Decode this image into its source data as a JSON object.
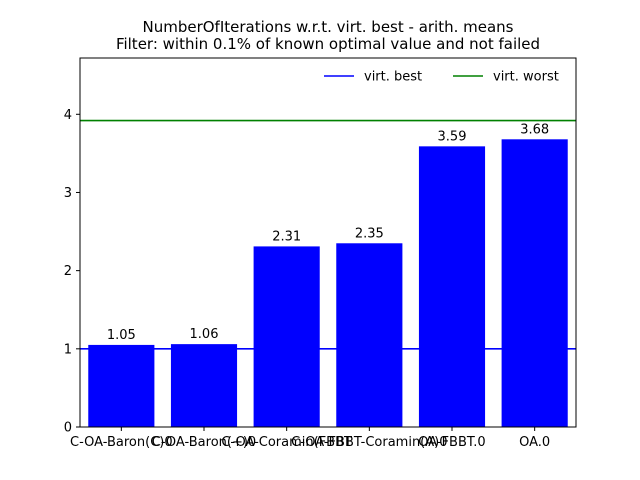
{
  "chart_data": {
    "type": "bar",
    "title": "NumberOfIterations w.r.t. virt. best - arith. means",
    "subtitle": "Filter: within 0.1% of known optimal value and not failed",
    "xlabel": "",
    "ylabel": "",
    "categories": [
      "C-OA-Baron(C)0",
      "C-OA-Baron(+)0",
      "C-OA-Coramin(FBBT",
      "C-OA-FBBT-Coramin(A)0",
      "OA-FBBT.0",
      "OA.0"
    ],
    "values": [
      1.05,
      1.06,
      2.31,
      2.35,
      3.59,
      3.68
    ],
    "data_labels": [
      "1.05",
      "1.06",
      "2.31",
      "2.35",
      "3.59",
      "3.68"
    ],
    "ylim": [
      0,
      4.72
    ],
    "yticks": [
      0,
      1,
      2,
      3,
      4
    ],
    "bar_color": "#0000ff",
    "reference_lines": [
      {
        "name": "virt. best",
        "value": 1.0,
        "color": "#0000ff"
      },
      {
        "name": "virt. worst",
        "value": 3.92,
        "color": "#008000"
      }
    ],
    "legend": {
      "placement": "top-right",
      "frame": false
    },
    "grid": false
  }
}
